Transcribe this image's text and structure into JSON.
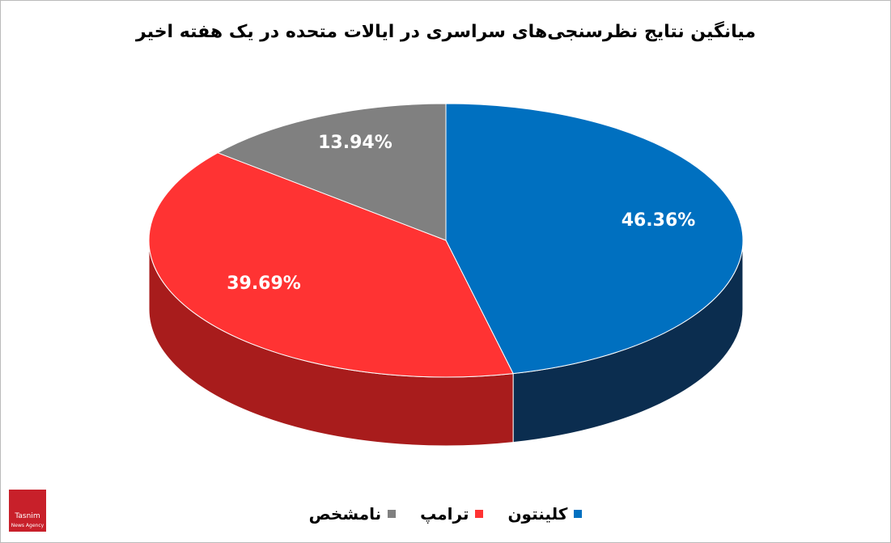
{
  "chart_data": {
    "type": "pie",
    "title": "میانگین نتایج نظرسنجی‌های سراسری در ایالات متحده در یک هفته اخیر",
    "categories": [
      "کلینتون",
      "ترامپ",
      "نامشخص"
    ],
    "values": [
      46.36,
      39.69,
      13.94
    ],
    "value_labels": [
      "46.36%",
      "39.69%",
      "13.94%"
    ],
    "colors": [
      "#0070c0",
      "#ff3333",
      "#808080"
    ],
    "side_colors": [
      "#0b2d4f",
      "#a81c1c",
      "#5a5a5a"
    ]
  },
  "watermark": {
    "name": "Tasnim",
    "subtitle": "News Agency"
  }
}
